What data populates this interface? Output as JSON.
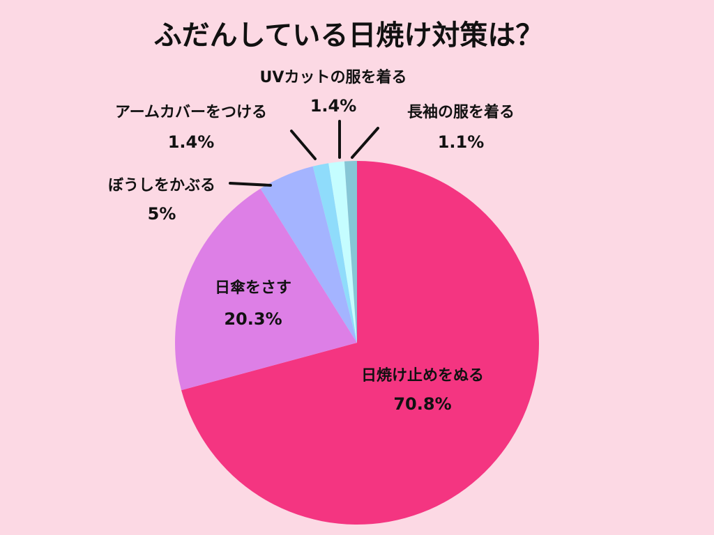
{
  "chart_data": {
    "type": "pie",
    "title": "ふだんしている日焼け対策は？",
    "start_angle_deg": 0,
    "direction": "clockwise",
    "slices": [
      {
        "label": "日焼け止めをぬる",
        "value": 70.8,
        "value_label": "70.8%",
        "color": "#f43581"
      },
      {
        "label": "日傘をさす",
        "value": 20.3,
        "value_label": "20.3%",
        "color": "#dd7fe6"
      },
      {
        "label": "ぼうしをかぶる",
        "value": 5,
        "value_label": "5%",
        "color": "#a4b4ff"
      },
      {
        "label": "アームカバーをつける",
        "value": 1.4,
        "value_label": "1.4%",
        "color": "#8fdcfb"
      },
      {
        "label": "UVカットの服を着る",
        "value": 1.4,
        "value_label": "1.4%",
        "color": "#c5fdff"
      },
      {
        "label": "長袖の服を着る",
        "value": 1.1,
        "value_label": "1.1%",
        "color": "#86c6d6"
      }
    ]
  }
}
